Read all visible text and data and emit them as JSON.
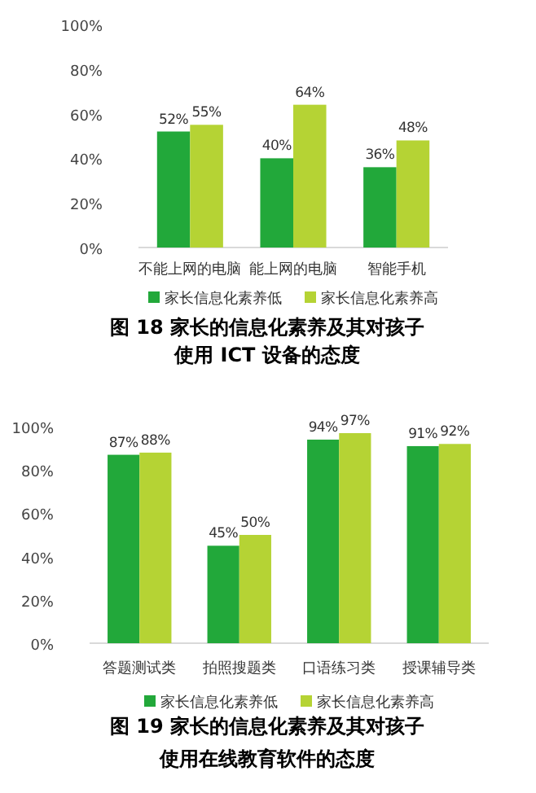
{
  "chart_data": [
    {
      "type": "bar",
      "title": "图 18 家长的信息化素养及其对孩子",
      "subtitle": "使用 ICT 设备的态度",
      "categories": [
        "不能上网的电脑",
        "能上网的电脑",
        "智能手机"
      ],
      "series": [
        {
          "name": "家长信息化素养低",
          "color": "#22a83a",
          "values": [
            52,
            40,
            36
          ],
          "value_labels": [
            "52%",
            "40%",
            "36%"
          ]
        },
        {
          "name": "家长信息化素养高",
          "color": "#b5d334",
          "values": [
            55,
            64,
            48
          ],
          "value_labels": [
            "55%",
            "64%",
            "48%"
          ]
        }
      ],
      "ylim": [
        0,
        100
      ],
      "yticks": [
        {
          "value": 0,
          "label": "0%"
        },
        {
          "value": 20,
          "label": "20%"
        },
        {
          "value": 40,
          "label": "40%"
        },
        {
          "value": 60,
          "label": "60%"
        },
        {
          "value": 80,
          "label": "80%"
        },
        {
          "value": 100,
          "label": "100%"
        }
      ],
      "legend": "bottom"
    },
    {
      "type": "bar",
      "title": "图 19 家长的信息化素养及其对孩子",
      "subtitle": "使用在线教育软件的态度",
      "categories": [
        "答题测试类",
        "拍照搜题类",
        "口语练习类",
        "授课辅导类"
      ],
      "series": [
        {
          "name": "家长信息化素养低",
          "color": "#22a83a",
          "values": [
            87,
            45,
            94,
            91
          ],
          "value_labels": [
            "87%",
            "45%",
            "94%",
            "91%"
          ]
        },
        {
          "name": "家长信息化素养高",
          "color": "#b5d334",
          "values": [
            88,
            50,
            97,
            92
          ],
          "value_labels": [
            "88%",
            "50%",
            "97%",
            "92%"
          ]
        }
      ],
      "ylim": [
        0,
        100
      ],
      "yticks": [
        {
          "value": 0,
          "label": "0%"
        },
        {
          "value": 20,
          "label": "20%"
        },
        {
          "value": 40,
          "label": "40%"
        },
        {
          "value": 60,
          "label": "60%"
        },
        {
          "value": 80,
          "label": "80%"
        },
        {
          "value": 100,
          "label": "100%"
        }
      ],
      "legend": "bottom"
    }
  ]
}
